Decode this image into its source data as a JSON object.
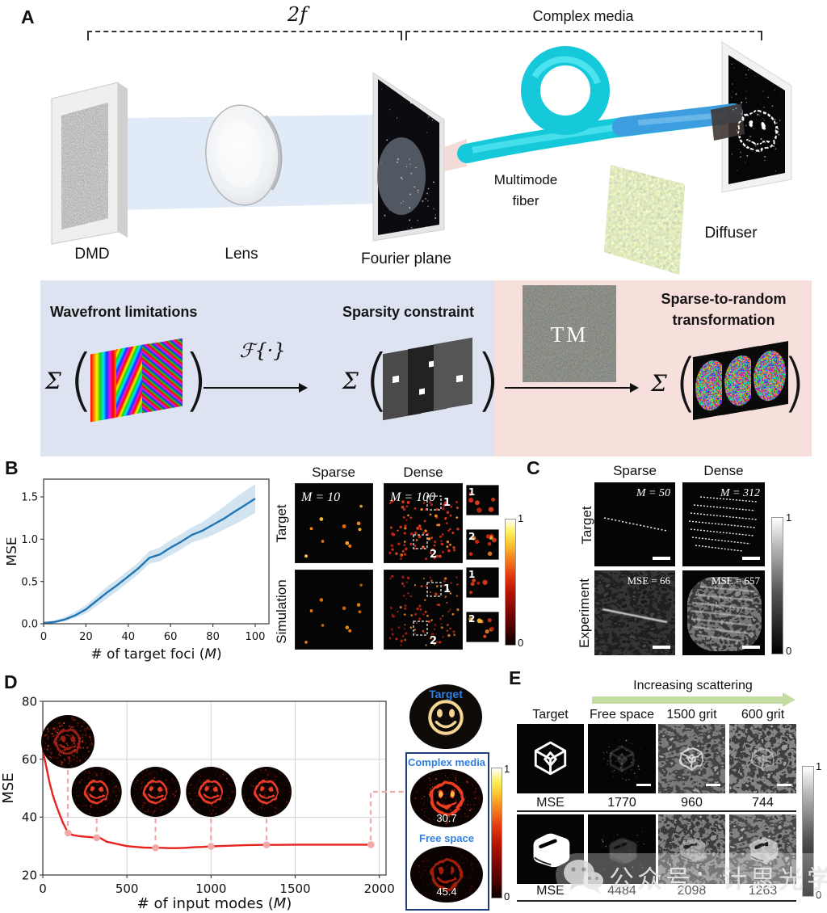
{
  "panelA": {
    "label": "A",
    "bracket_2f": "2f",
    "bracket_complex": "Complex media",
    "labels": {
      "dmd": "DMD",
      "lens": "Lens",
      "fourier": "Fourier plane",
      "fiber1": "Multimode",
      "fiber2": "fiber",
      "diffuser": "Diffuser"
    },
    "blue_box": {
      "heading_left": "Wavefront limitations",
      "heading_right": "Sparsity constraint",
      "sigma": "Σ",
      "open": "(",
      "close": ")",
      "fourier_op": "ℱ{·}"
    },
    "pink_box": {
      "tm": "TM",
      "heading1": "Sparse-to-random",
      "heading2": "transformation",
      "sigma": "Σ",
      "open": "(",
      "close": ")"
    }
  },
  "panelB": {
    "label": "B",
    "col_sparse": "Sparse",
    "col_dense": "Dense",
    "row_target": "Target",
    "row_sim": "Simulation",
    "m_sparse": "M = 10",
    "m_dense": "M = 100",
    "roi1": "1",
    "roi2": "2",
    "insets": [
      "1",
      "2",
      "1",
      "2"
    ],
    "cbar_top": "1",
    "cbar_bottom": "0"
  },
  "panelC": {
    "label": "C",
    "col_sparse": "Sparse",
    "col_dense": "Dense",
    "row_target": "Target",
    "row_exp": "Experiment",
    "m_sparse": "M = 50",
    "m_dense": "M = 312",
    "mse_sparse": "MSE = 66",
    "mse_dense": "MSE = 657",
    "cbar_top": "1",
    "cbar_bottom": "0"
  },
  "panelD": {
    "label": "D",
    "target_label": "Target",
    "complex_label": "Complex media",
    "complex_mse": "30.7",
    "free_label": "Free space",
    "free_mse": "45.4",
    "cbar_top": "1",
    "cbar_bottom": "0"
  },
  "panelE": {
    "label": "E",
    "arrow_label": "Increasing scattering",
    "columns": [
      "Target",
      "Free space",
      "1500 grit",
      "600 grit"
    ],
    "mse_label": "MSE",
    "row1_values": [
      "1770",
      "960",
      "744"
    ],
    "row2_values": [
      "4484",
      "2098",
      "1263"
    ],
    "cbar_top": "1",
    "cbar_bottom": "0"
  },
  "watermark": {
    "text": "公众号：计思光学"
  },
  "chart_data": [
    {
      "id": "chartB",
      "type": "line",
      "title": "",
      "xlabel": "# of target foci (M)",
      "ylabel": "MSE",
      "xlim": [
        0,
        106.5
      ],
      "ylim": [
        0,
        1.71
      ],
      "xticks": [
        0,
        20,
        40,
        60,
        80,
        100
      ],
      "yticks": [
        0,
        0.5,
        1,
        1.5
      ],
      "ytick_decimals": 1,
      "grid": false,
      "legend": "none",
      "line_color": "#2077b4",
      "band_color": "#aecde6",
      "x": [
        0,
        5,
        10,
        15,
        20,
        25,
        30,
        35,
        40,
        45,
        50,
        55,
        60,
        65,
        70,
        75,
        80,
        85,
        90,
        95,
        100
      ],
      "y": [
        0.01,
        0.02,
        0.05,
        0.1,
        0.17,
        0.27,
        0.37,
        0.46,
        0.56,
        0.66,
        0.78,
        0.82,
        0.9,
        0.97,
        1.05,
        1.1,
        1.17,
        1.24,
        1.32,
        1.4,
        1.48
      ],
      "band_upper": [
        0.02,
        0.04,
        0.08,
        0.14,
        0.22,
        0.33,
        0.44,
        0.53,
        0.63,
        0.73,
        0.86,
        0.9,
        0.99,
        1.06,
        1.14,
        1.2,
        1.29,
        1.38,
        1.48,
        1.57,
        1.65
      ],
      "band_lower": [
        0,
        0.01,
        0.03,
        0.07,
        0.12,
        0.21,
        0.3,
        0.39,
        0.49,
        0.59,
        0.71,
        0.74,
        0.81,
        0.88,
        0.96,
        1,
        1.05,
        1.11,
        1.17,
        1.24,
        1.31
      ]
    },
    {
      "id": "chartD",
      "type": "line",
      "title": "",
      "xlabel": "# of input modes (M)",
      "ylabel": "MSE",
      "xlim": [
        0,
        2040
      ],
      "ylim": [
        20,
        80
      ],
      "xticks": [
        0,
        500,
        1000,
        1500,
        2000
      ],
      "yticks": [
        20,
        40,
        60,
        80
      ],
      "ytick_decimals": 0,
      "grid": true,
      "legend": "none",
      "line_color": "#e8231f",
      "marker_color": "#f2a8a5",
      "x": [
        0,
        20,
        40,
        60,
        80,
        100,
        120,
        150,
        180,
        220,
        260,
        300,
        340,
        380,
        420,
        460,
        500,
        550,
        600,
        650,
        700,
        750,
        800,
        850,
        900,
        950,
        1000,
        1100,
        1200,
        1300,
        1400,
        1500,
        1600,
        1700,
        1800,
        1900,
        1950
      ],
      "y": [
        63,
        57.5,
        52,
        47.5,
        44,
        41,
        38,
        34.5,
        33.8,
        33.4,
        33.2,
        33,
        32.8,
        31.5,
        31,
        30.5,
        30,
        29.7,
        29.5,
        29.4,
        29.4,
        29.3,
        29.3,
        29.4,
        29.6,
        29.7,
        29.9,
        30.1,
        30.3,
        30.4,
        30.4,
        30.5,
        30.5,
        30.5,
        30.5,
        30.5,
        30.5
      ],
      "markers_x": [
        150,
        320,
        670,
        1000,
        1330,
        1950
      ]
    }
  ]
}
